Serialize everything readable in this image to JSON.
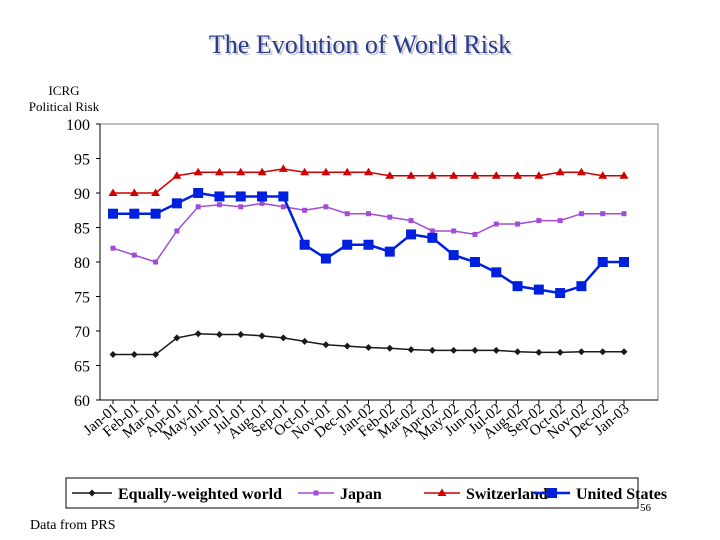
{
  "slide": {
    "title": "The Evolution of World Risk",
    "footer": "Data from PRS",
    "page_number": "56"
  },
  "chart_data": {
    "type": "line",
    "title": "The Evolution of World Risk",
    "ylabel_lines": [
      "ICRG",
      "Political Risk"
    ],
    "xlabel": "",
    "ylim": [
      60,
      100
    ],
    "yticks": [
      60,
      65,
      70,
      75,
      80,
      85,
      90,
      95,
      100
    ],
    "grid": false,
    "legend_position": "bottom",
    "categories": [
      "Jan-01",
      "Feb-01",
      "Mar-01",
      "Apr-01",
      "May-01",
      "Jun-01",
      "Jul-01",
      "Aug-01",
      "Sep-01",
      "Oct-01",
      "Nov-01",
      "Dec-01",
      "Jan-02",
      "Feb-02",
      "Mar-02",
      "Apr-02",
      "May-02",
      "Jun-02",
      "Jul-02",
      "Aug-02",
      "Sep-02",
      "Oct-02",
      "Nov-02",
      "Dec-02",
      "Jan-03"
    ],
    "series": [
      {
        "name": "Equally-weighted world",
        "color": "#1a1a1a",
        "marker": "diamond",
        "values": [
          66.6,
          66.6,
          66.6,
          69.0,
          69.6,
          69.5,
          69.5,
          69.3,
          69.0,
          68.5,
          68.0,
          67.8,
          67.6,
          67.5,
          67.3,
          67.2,
          67.2,
          67.2,
          67.2,
          67.0,
          66.9,
          66.9,
          67.0,
          67.0,
          67.0
        ]
      },
      {
        "name": "Japan",
        "color": "#a24cd6",
        "marker": "square-small",
        "values": [
          82.0,
          81.0,
          80.0,
          84.5,
          88.0,
          88.3,
          88.0,
          88.5,
          88.0,
          87.5,
          88.0,
          87.0,
          87.0,
          86.5,
          86.0,
          84.5,
          84.5,
          84.0,
          85.5,
          85.5,
          86.0,
          86.0,
          87.0,
          87.0,
          87.0
        ]
      },
      {
        "name": "Switzerland",
        "color": "#d10000",
        "marker": "triangle",
        "values": [
          90.0,
          90.0,
          90.0,
          92.5,
          93.0,
          93.0,
          93.0,
          93.0,
          93.5,
          93.0,
          93.0,
          93.0,
          93.0,
          92.5,
          92.5,
          92.5,
          92.5,
          92.5,
          92.5,
          92.5,
          92.5,
          93.0,
          93.0,
          92.5,
          92.5
        ]
      },
      {
        "name": "United States",
        "color": "#0020e0",
        "marker": "square",
        "values": [
          87.0,
          87.0,
          87.0,
          88.5,
          90.0,
          89.5,
          89.5,
          89.5,
          89.5,
          82.5,
          80.5,
          82.5,
          82.5,
          81.5,
          84.0,
          83.5,
          81.0,
          80.0,
          78.5,
          76.5,
          76.0,
          75.5,
          76.5,
          80.0,
          80.0
        ]
      }
    ]
  }
}
